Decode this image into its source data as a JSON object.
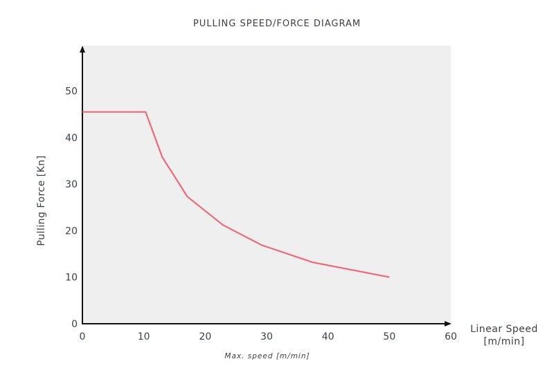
{
  "chart_data": {
    "type": "line",
    "title": "PULLING SPEED/FORCE DIAGRAM",
    "xlabel": "Linear Speed [m/min]",
    "xlabel_lines": [
      "Linear Speed",
      "[m/min]"
    ],
    "ylabel": "Pulling Force [Kn]",
    "annotation": "Max. speed [m/min]",
    "xlim": [
      0,
      60
    ],
    "ylim": [
      0,
      55
    ],
    "x_ticks": [
      0,
      10,
      20,
      30,
      40,
      50,
      60
    ],
    "y_ticks": [
      0,
      10,
      20,
      30,
      40,
      50
    ],
    "grid": false,
    "legend": null,
    "series": [
      {
        "name": "Pulling force",
        "color": "#F06878",
        "x": [
          0,
          10.3,
          13,
          17.1,
          22.9,
          29.2,
          37.5,
          50
        ],
        "y": [
          45.5,
          45.5,
          35.8,
          27.3,
          21.2,
          16.9,
          13.2,
          10
        ]
      }
    ],
    "plot_background": "#EFEFEF"
  }
}
